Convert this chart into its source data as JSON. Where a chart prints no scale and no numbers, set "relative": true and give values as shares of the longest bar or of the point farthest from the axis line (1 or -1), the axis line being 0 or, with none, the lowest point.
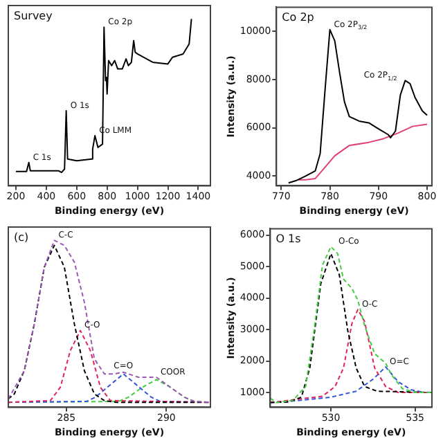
{
  "chart_data": [
    {
      "type": "line",
      "relative": true,
      "xlabel": "Binding energy (eV)",
      "xlim": [
        150,
        1480
      ],
      "xticks": [
        200,
        400,
        600,
        800,
        1000,
        1200,
        1400
      ],
      "tick_labels": "x",
      "legend": false,
      "marker": "none",
      "line_style": "solid",
      "annotations": [
        "Survey",
        {
          "text": "C 1s",
          "x": 285,
          "y": 0.14
        },
        {
          "text": "O 1s",
          "x": 531,
          "y": 0.45
        },
        {
          "text": "Co LMM",
          "x": 720,
          "y": 0.3
        },
        {
          "text": "Co 2p",
          "x": 780,
          "y": 0.95
        }
      ],
      "series": [
        {
          "color": "#000000",
          "x": [
            200,
            270,
            285,
            295,
            480,
            500,
            520,
            531,
            540,
            600,
            700,
            705,
            720,
            740,
            770,
            780,
            790,
            796,
            800,
            810,
            830,
            850,
            870,
            900,
            925,
            940,
            960,
            975,
            985,
            1000,
            1100,
            1200,
            1230,
            1300,
            1340,
            1355
          ],
          "values": [
            0.086,
            0.086,
            0.14,
            0.09,
            0.09,
            0.08,
            0.1,
            0.45,
            0.16,
            0.15,
            0.16,
            0.22,
            0.3,
            0.23,
            0.25,
            0.95,
            0.63,
            0.65,
            0.55,
            0.75,
            0.72,
            0.75,
            0.7,
            0.7,
            0.76,
            0.72,
            0.74,
            0.87,
            0.8,
            0.79,
            0.74,
            0.73,
            0.77,
            0.79,
            0.85,
            1
          ]
        }
      ]
    },
    {
      "type": "line",
      "xlabel": "Binding energy (eV)",
      "ylabel": "Intensity (a.u.)",
      "xlim": [
        769,
        801
      ],
      "xticks": [
        770,
        780,
        790,
        800
      ],
      "ylim": [
        3600,
        11000
      ],
      "yticks": [
        4000,
        6000,
        8000,
        10000
      ],
      "legend": false,
      "marker": "none",
      "line_style": "solid",
      "annotations": [
        "Co 2p",
        {
          "text": "Co 2P$_{3/2}$",
          "x": 780,
          "y": 10070
        },
        {
          "text": "Co 2P$_{1/2}$",
          "x": 795.5,
          "y": 7960
        }
      ],
      "series": [
        {
          "color": "#000000",
          "x": [
            771.5,
            773,
            775,
            777,
            778,
            779,
            780,
            781,
            782,
            783,
            784,
            786,
            788,
            790,
            792,
            792.5,
            793.5,
            794.5,
            795.5,
            796.5,
            797.5,
            799,
            800
          ],
          "values": [
            3720,
            3810,
            4000,
            4220,
            4930,
            7550,
            10070,
            9610,
            8300,
            7080,
            6470,
            6280,
            6210,
            5960,
            5720,
            5590,
            5870,
            7360,
            7960,
            7830,
            7270,
            6710,
            6520
          ]
        },
        {
          "color": "#e0407a",
          "x": [
            773.5,
            775,
            777,
            779,
            781,
            784,
            788,
            791,
            794,
            797,
            800
          ],
          "values": [
            3850,
            3850,
            3900,
            4370,
            4840,
            5270,
            5400,
            5550,
            5780,
            6060,
            6150
          ]
        }
      ]
    },
    {
      "type": "line",
      "relative": true,
      "xlabel": "Binding energy (eV)",
      "xlim": [
        282.1,
        292.2
      ],
      "xticks": [
        285,
        290
      ],
      "tick_labels": "x",
      "legend": false,
      "marker": "none",
      "line_style": "dashed",
      "annotations": [
        "(c)",
        {
          "text": "C-C",
          "x": 284.4,
          "y": 1
        },
        {
          "text": "C-O",
          "x": 285.7,
          "y": 0.46
        },
        {
          "text": "C=O",
          "x": 287.85,
          "y": 0.2
        },
        {
          "text": "COOR",
          "x": 289.5,
          "y": 0.18
        }
      ],
      "series": [
        {
          "color": "#9b59b6",
          "x": [
            282.1,
            282.9,
            283.4,
            283.9,
            284.4,
            284.9,
            285.4,
            285.9,
            286.4,
            286.9,
            287.4,
            287.85,
            288.6,
            289.5,
            290.2,
            290.9,
            291.4,
            292.2
          ],
          "values": [
            0.05,
            0.22,
            0.5,
            0.84,
            1,
            0.97,
            0.87,
            0.63,
            0.29,
            0.2,
            0.2,
            0.21,
            0.18,
            0.18,
            0.12,
            0.06,
            0.035,
            0.03
          ]
        },
        {
          "color": "#000000",
          "x": [
            282.1,
            282.4,
            282.9,
            283.4,
            283.9,
            284.4,
            284.9,
            285.4,
            285.9,
            286.4,
            286.9,
            287.5,
            292.2
          ],
          "values": [
            0.05,
            0.08,
            0.22,
            0.5,
            0.84,
            0.97,
            0.84,
            0.5,
            0.22,
            0.08,
            0.04,
            0.03,
            0.03
          ]
        },
        {
          "color": "#e0245e",
          "x": [
            282.1,
            284.2,
            284.7,
            285.2,
            285.7,
            286.2,
            286.7,
            287.2,
            292.2
          ],
          "values": [
            0.03,
            0.04,
            0.12,
            0.34,
            0.46,
            0.34,
            0.12,
            0.04,
            0.03
          ]
        },
        {
          "color": "#3355dd",
          "x": [
            282.1,
            286,
            286.45,
            287.15,
            287.85,
            288.55,
            289.25,
            289.7,
            292.2
          ],
          "values": [
            0.03,
            0.035,
            0.06,
            0.13,
            0.2,
            0.13,
            0.06,
            0.035,
            0.03
          ]
        },
        {
          "color": "#44cc44",
          "x": [
            282.1,
            287.6,
            288.1,
            288.8,
            289.5,
            290.2,
            290.9,
            291.4,
            292.2
          ],
          "values": [
            0.03,
            0.035,
            0.06,
            0.12,
            0.166,
            0.12,
            0.06,
            0.035,
            0.03
          ]
        }
      ]
    },
    {
      "type": "line",
      "xlabel": "Binding energy (eV)",
      "ylabel": "Intensity (a.u.)",
      "xlim": [
        526.4,
        536
      ],
      "xticks": [
        530,
        535
      ],
      "ylim": [
        530,
        6200
      ],
      "yticks": [
        1000,
        2000,
        3000,
        4000,
        5000,
        6000
      ],
      "legend": false,
      "marker": "none",
      "line_style": "dashed",
      "annotations": [
        "O 1s",
        {
          "text": "O-Co",
          "x": 530.2,
          "y": 5630
        },
        {
          "text": "O-C",
          "x": 531.6,
          "y": 3630
        },
        {
          "text": "O=C",
          "x": 533.25,
          "y": 1810
        }
      ],
      "series": [
        {
          "color": "#44cc44",
          "x": [
            526.4,
            526.75,
            527.75,
            528.5,
            529,
            529.5,
            530,
            530.4,
            530.75,
            531.25,
            531.6,
            532,
            532.6,
            533.25,
            533.6,
            534.25,
            535,
            536
          ],
          "values": [
            820,
            680,
            750,
            1190,
            2970,
            5040,
            5630,
            5410,
            4600,
            4300,
            3930,
            3120,
            2230,
            1930,
            1560,
            1120,
            1000,
            1000
          ]
        },
        {
          "color": "#000000",
          "x": [
            526.4,
            527.5,
            528.25,
            528.75,
            529.4,
            530,
            530.5,
            531,
            531.5,
            532,
            532.75,
            536
          ],
          "values": [
            680,
            700,
            850,
            1780,
            4450,
            5410,
            4740,
            2970,
            1780,
            1190,
            1040,
            1000
          ]
        },
        {
          "color": "#e0245e",
          "x": [
            526.4,
            529.5,
            530.25,
            530.75,
            531.25,
            531.6,
            532,
            532.6,
            533.25,
            534,
            536
          ],
          "values": [
            680,
            880,
            1190,
            1780,
            3190,
            3630,
            3260,
            1780,
            1190,
            1000,
            1000
          ]
        },
        {
          "color": "#3355dd",
          "x": [
            526.4,
            528,
            530,
            531.5,
            532.5,
            533.25,
            534,
            534.75,
            535.5,
            536
          ],
          "values": [
            680,
            740,
            850,
            1040,
            1420,
            1810,
            1340,
            1090,
            1000,
            1000
          ]
        }
      ]
    }
  ]
}
